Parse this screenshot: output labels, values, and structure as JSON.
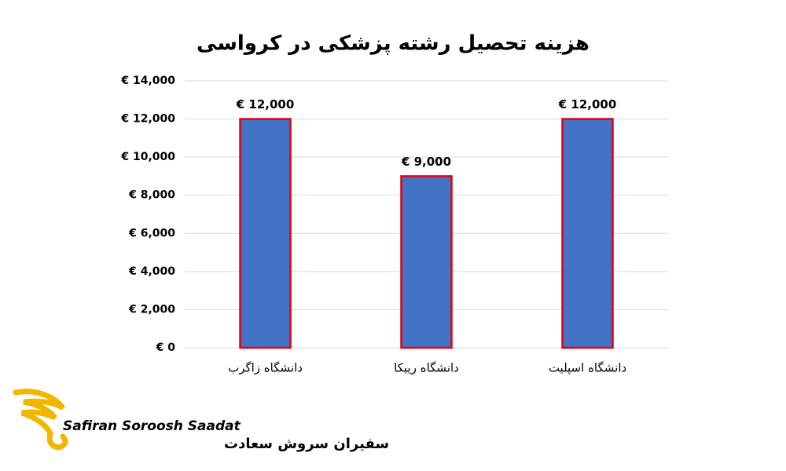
{
  "chart_data": {
    "type": "bar",
    "title": "هزینه تحصیل رشته پزشکی در کرواسی",
    "categories": [
      "دانشگاه زاگرب",
      "دانشگاه رییکا",
      "دانشگاه اسپلیت"
    ],
    "values": [
      12000,
      9000,
      12000
    ],
    "value_labels": [
      "€ 12,000",
      "€ 9,000",
      "€ 12,000"
    ],
    "color": "#4472c4",
    "edge_color": "#e3000f",
    "ylim": [
      0,
      14000
    ],
    "yticks": [
      {
        "value": 0,
        "label": "€ 0"
      },
      {
        "value": 2000,
        "label": "€ 2,000"
      },
      {
        "value": 4000,
        "label": "€ 4,000"
      },
      {
        "value": 6000,
        "label": "€ 6,000"
      },
      {
        "value": 8000,
        "label": "€ 8,000"
      },
      {
        "value": 10000,
        "label": "€ 10,000"
      },
      {
        "value": 12000,
        "label": "€ 12,000"
      },
      {
        "value": 14000,
        "label": "€ 14,000"
      }
    ],
    "grid": true
  },
  "logo": {
    "name_en": "Safiran Soroosh Saadat",
    "name_fa": "سفیران سروش سعادت"
  }
}
